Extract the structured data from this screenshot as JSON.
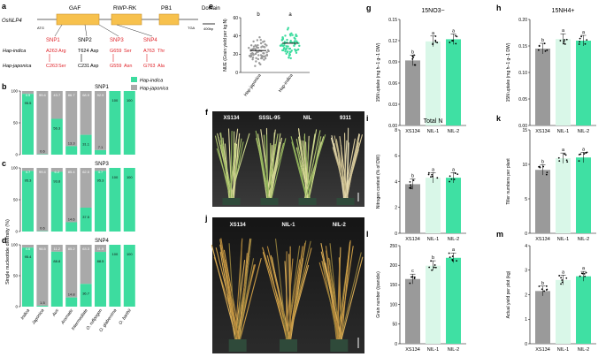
{
  "colors": {
    "indica": "#3ddc9f",
    "japonica": "#a9a9a9",
    "bar_grey": "#9a9a9a",
    "nil1": "#d9f7e8",
    "nil2": "#3fe0a3",
    "snp_red": "#e0242a",
    "gene_box": "#f7c14d"
  },
  "panel_a": {
    "letter": "a",
    "gene": "OsNLP4",
    "domains": [
      "GAF",
      "RWP-RK",
      "PB1"
    ],
    "domain_label": "Domain",
    "atg": "ATG",
    "tga": "TGA",
    "scale": "400bp",
    "snps": [
      "SNP1",
      "SNP2",
      "SNP3",
      "SNP4"
    ],
    "hap_indica": "Hap-indica",
    "hap_japonica": "Hap-japonica",
    "indica_alleles": [
      "A263",
      "Arg",
      "T624",
      "Asp",
      "G659",
      "Ser",
      "A763",
      "Thr"
    ],
    "japonica_alleles": [
      "C263",
      "Ser",
      "C231",
      "Asp",
      "G559",
      "Asn",
      "G763",
      "Ala"
    ]
  },
  "diversity": {
    "ylabel": "Single nucleotide diversity (%)",
    "legend": [
      "Hap-indica",
      "Hap-japonica"
    ],
    "groups": [
      "Indica",
      "Japonica",
      "Aus",
      "Aromatic",
      "Intermediate",
      "O. rufipogon",
      "O. glaberrima",
      "O. barthii"
    ],
    "panels": [
      {
        "letter": "b",
        "title": "SNP1",
        "indica": [
          95.5,
          0.6,
          56.3,
          13.3,
          31.1,
          7.1,
          100,
          100
        ],
        "labels": [
          "95.5",
          "0.6",
          "56.3",
          "13.3",
          "31.1",
          "7.1",
          "100",
          "100"
        ]
      },
      {
        "letter": "c",
        "title": "SNP3",
        "indica": [
          95.3,
          0.6,
          93.8,
          14.6,
          37.5,
          95.3,
          100,
          100
        ],
        "labels": [
          "95.3",
          "0.6",
          "93.8",
          "14.6",
          "37.5",
          "95.3",
          "100",
          "100"
        ]
      },
      {
        "letter": "d",
        "title": "SNP4",
        "indica": [
          95.4,
          1.5,
          88.8,
          14.8,
          36.7,
          88.5,
          100,
          100
        ],
        "labels": [
          "95.4",
          "1.5",
          "88.8",
          "14.8",
          "36.7",
          "88.5",
          "100",
          "100"
        ]
      }
    ]
  },
  "panel_e": {
    "letter": "e",
    "ylabel": "NUE (Grain yield per kg N)",
    "categories": [
      "Hap-japonica",
      "Hap-indica"
    ],
    "letters": [
      "b",
      "a"
    ],
    "means": [
      24,
      32
    ],
    "ylim": [
      0,
      60
    ],
    "yticks": [
      "0",
      "20",
      "40",
      "60"
    ]
  },
  "photos": {
    "f": {
      "letter": "f",
      "labels": [
        "XS134",
        "SSSL-95",
        "NIL",
        "9311"
      ]
    },
    "j": {
      "letter": "j",
      "labels": [
        "XS134",
        "NIL-1",
        "NIL-2"
      ]
    }
  },
  "bar_panels": [
    {
      "letter": "g",
      "title": "15NO3−",
      "ylabel": "15N uptake (mg h−1 g−1 DW)",
      "ylim": [
        0,
        0.15
      ],
      "ticks": [
        "0.00",
        "0.03",
        "0.06",
        "0.09",
        "0.12",
        "0.15"
      ],
      "values": [
        0.092,
        0.119,
        0.122
      ],
      "letters": [
        "b",
        "a",
        "a"
      ],
      "categories": [
        "XS134",
        "NIL-1",
        "NIL-2"
      ]
    },
    {
      "letter": "h",
      "title": "15NH4+",
      "ylabel": "15N uptake (mg h−1 g−1 DW)",
      "ylim": [
        0,
        0.2
      ],
      "ticks": [
        "0.00",
        "0.05",
        "0.10",
        "0.15",
        "0.20"
      ],
      "values": [
        0.145,
        0.163,
        0.16
      ],
      "letters": [
        "b",
        "a",
        "a"
      ],
      "categories": [
        "XS134",
        "NIL-1",
        "NIL-2"
      ]
    },
    {
      "letter": "i",
      "title": "Total N",
      "ylabel": "Nitrogen content (% of DW)",
      "ylim": [
        0,
        8
      ],
      "ticks": [
        "0",
        "2",
        "4",
        "6",
        "8"
      ],
      "values": [
        3.8,
        4.3,
        4.3
      ],
      "letters": [
        "b",
        "a",
        "a"
      ],
      "categories": [
        "XS134",
        "NIL-1",
        "NIL-2"
      ]
    },
    {
      "letter": "k",
      "title": "",
      "ylabel": "Tiller numbers per plant",
      "ylim": [
        0,
        15
      ],
      "ticks": [
        "0",
        "5",
        "10",
        "15"
      ],
      "values": [
        9.2,
        10.9,
        11.0
      ],
      "letters": [
        "b",
        "a",
        "a"
      ],
      "categories": [
        "XS134",
        "NIL-1",
        "NIL-2"
      ]
    },
    {
      "letter": "l",
      "title": "",
      "ylabel": "Grain number (/panicle)",
      "ylim": [
        0,
        250
      ],
      "ticks": [
        "0",
        "50",
        "100",
        "150",
        "200",
        "250"
      ],
      "values": [
        165,
        199,
        219
      ],
      "letters": [
        "c",
        "b",
        "a"
      ],
      "categories": [
        "XS134",
        "NIL-1",
        "NIL-2"
      ]
    },
    {
      "letter": "m",
      "title": "",
      "ylabel": "Actual yield per plot (kg)",
      "ylim": [
        0,
        4
      ],
      "ticks": [
        "0",
        "1",
        "2",
        "3",
        "4"
      ],
      "values": [
        2.15,
        2.6,
        2.75
      ],
      "letters": [
        "b",
        "a",
        "a"
      ],
      "categories": [
        "XS134",
        "NIL-1",
        "NIL-2"
      ]
    }
  ]
}
